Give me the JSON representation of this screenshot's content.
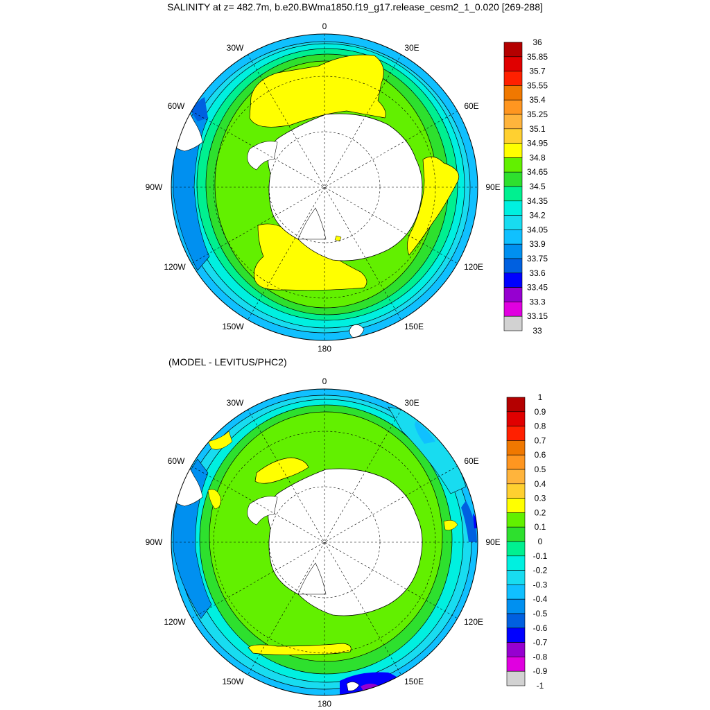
{
  "top": {
    "title": "SALINITY at z= 482.7m, b.e20.BWma1850.f19_g17.release_cesm2_1_0.020 [269-288]",
    "lon_labels": [
      "0",
      "30E",
      "60E",
      "90E",
      "120E",
      "150E",
      "180",
      "150W",
      "120W",
      "90W",
      "60W",
      "30W"
    ],
    "colorbar": {
      "labels": [
        "36",
        "35.85",
        "35.7",
        "35.55",
        "35.4",
        "35.25",
        "35.1",
        "34.95",
        "34.8",
        "34.65",
        "34.5",
        "34.35",
        "34.2",
        "34.05",
        "33.9",
        "33.75",
        "33.6",
        "33.45",
        "33.3",
        "33.15",
        "33"
      ],
      "colors": [
        "#b40000",
        "#e00000",
        "#ff2000",
        "#f07800",
        "#ff9620",
        "#ffb43c",
        "#ffd030",
        "#ffff00",
        "#62f000",
        "#2ee02e",
        "#00f090",
        "#00f0e0",
        "#18dcf0",
        "#10c0ff",
        "#0090f0",
        "#0060e0",
        "#0000ff",
        "#9600d0",
        "#e000e0",
        "#d2d2d2",
        "#707070"
      ]
    }
  },
  "bottom": {
    "title": "(MODEL - LEVITUS/PHC2)",
    "lon_labels": [
      "0",
      "30E",
      "60E",
      "90E",
      "120E",
      "150E",
      "180",
      "150W",
      "120W",
      "90W",
      "60W",
      "30W"
    ],
    "colorbar": {
      "labels": [
        "1",
        "0.9",
        "0.8",
        "0.7",
        "0.6",
        "0.5",
        "0.4",
        "0.3",
        "0.2",
        "0.1",
        "0",
        "-0.1",
        "-0.2",
        "-0.3",
        "-0.4",
        "-0.5",
        "-0.6",
        "-0.7",
        "-0.8",
        "-0.9",
        "-1"
      ],
      "colors": [
        "#b40000",
        "#e00000",
        "#ff2000",
        "#f07800",
        "#ff9620",
        "#ffb43c",
        "#ffd030",
        "#ffff00",
        "#62f000",
        "#2ee02e",
        "#00f090",
        "#00f0e0",
        "#18dcf0",
        "#10c0ff",
        "#0090f0",
        "#0060e0",
        "#0000ff",
        "#9600d0",
        "#e000e0",
        "#d2d2d2",
        "#707070"
      ]
    }
  }
}
